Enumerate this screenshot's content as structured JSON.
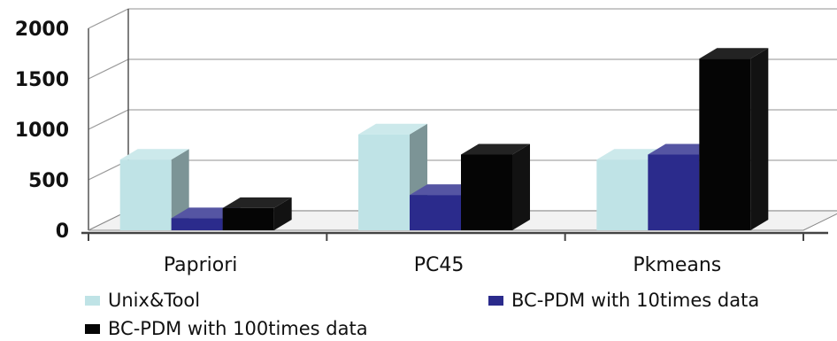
{
  "chart_data": {
    "type": "bar",
    "title": "",
    "xlabel": "",
    "ylabel": "",
    "categories": [
      "Papriori",
      "PC45",
      "Pkmeans"
    ],
    "series": [
      {
        "name": "Unix&Tool",
        "values": [
          700,
          950,
          700
        ],
        "color": "#bfe3e6"
      },
      {
        "name": "BC-PDM with 10times data",
        "values": [
          120,
          350,
          750
        ],
        "color": "#2b2b8c"
      },
      {
        "name": "BC-PDM with 100times data",
        "values": [
          220,
          750,
          1700
        ],
        "color": "#050505"
      }
    ],
    "y_ticks": [
      "0",
      "500",
      "1000",
      "1500",
      "2000"
    ],
    "ylim": [
      0,
      2000
    ],
    "grid": true,
    "legend_position": "bottom",
    "style": "3d-clustered-column"
  }
}
